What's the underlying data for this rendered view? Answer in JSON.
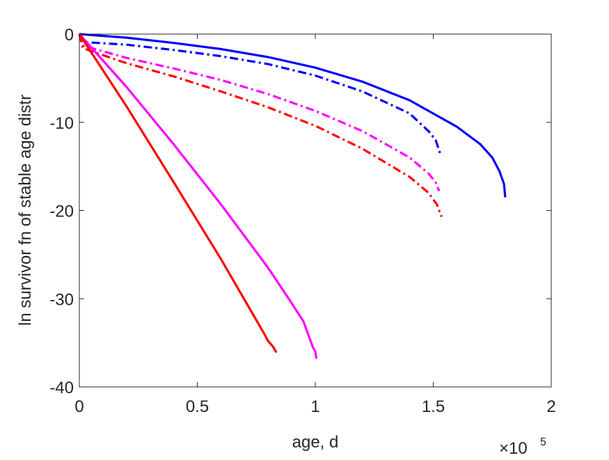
{
  "chart_data": {
    "type": "line",
    "title": "",
    "xlabel": "age, d",
    "ylabel": "ln survivor fn of stable age distr",
    "x_exponent_label": {
      "base": "×10",
      "exp": "5"
    },
    "x_scale": 100000,
    "xlim": [
      0,
      200000
    ],
    "ylim": [
      -40,
      0
    ],
    "xticks": [
      0,
      50000,
      100000,
      150000,
      200000
    ],
    "xtick_labels": [
      "0",
      "0.5",
      "1",
      "1.5",
      "2"
    ],
    "yticks": [
      0,
      -10,
      -20,
      -30,
      -40
    ],
    "ytick_labels": [
      "0",
      "-10",
      "-20",
      "-30",
      "-40"
    ],
    "grid": false,
    "legend": "none",
    "series": [
      {
        "color": "#0000ff",
        "style": "solid",
        "x": [
          0,
          20000,
          40000,
          60000,
          80000,
          100000,
          120000,
          140000,
          160000,
          170000,
          175000,
          178000,
          180000,
          180500
        ],
        "y": [
          0,
          -0.4,
          -1.0,
          -1.7,
          -2.6,
          -3.8,
          -5.4,
          -7.5,
          -10.5,
          -12.5,
          -14.0,
          -15.5,
          -17.0,
          -18.5
        ]
      },
      {
        "color": "#0000ff",
        "style": "dashdot",
        "x": [
          0,
          1500,
          20000,
          40000,
          60000,
          80000,
          100000,
          120000,
          140000,
          148000,
          151000,
          153000
        ],
        "y": [
          0,
          -0.9,
          -1.2,
          -1.8,
          -2.5,
          -3.4,
          -4.7,
          -6.5,
          -9.0,
          -11.0,
          -12.0,
          -13.6
        ]
      },
      {
        "color": "#ff00ff",
        "style": "dashdot",
        "x": [
          0,
          1500,
          20000,
          40000,
          60000,
          80000,
          100000,
          120000,
          140000,
          148000,
          151000,
          152500
        ],
        "y": [
          0,
          -1.3,
          -2.7,
          -3.9,
          -5.2,
          -6.8,
          -8.7,
          -11.0,
          -14.0,
          -15.8,
          -16.8,
          -17.8
        ]
      },
      {
        "color": "#ff0000",
        "style": "dashdot",
        "x": [
          0,
          1500,
          20000,
          40000,
          60000,
          80000,
          100000,
          120000,
          140000,
          148000,
          151500,
          153500
        ],
        "y": [
          0,
          -1.6,
          -3.3,
          -4.8,
          -6.5,
          -8.3,
          -10.4,
          -13.0,
          -16.2,
          -18.0,
          -19.3,
          -20.7
        ]
      },
      {
        "color": "#ff00ff",
        "style": "solid",
        "x": [
          0,
          20000,
          40000,
          60000,
          80000,
          90000,
          95000,
          99000,
          100000,
          100500
        ],
        "y": [
          0,
          -6.0,
          -12.5,
          -19.3,
          -26.5,
          -30.5,
          -32.6,
          -35.5,
          -36.0,
          -36.8
        ]
      },
      {
        "color": "#ff0000",
        "style": "solid",
        "x": [
          0,
          20000,
          40000,
          60000,
          78000,
          80000,
          82000,
          83500
        ],
        "y": [
          0,
          -8.2,
          -16.8,
          -25.5,
          -33.8,
          -34.8,
          -35.4,
          -36.1
        ]
      }
    ]
  }
}
